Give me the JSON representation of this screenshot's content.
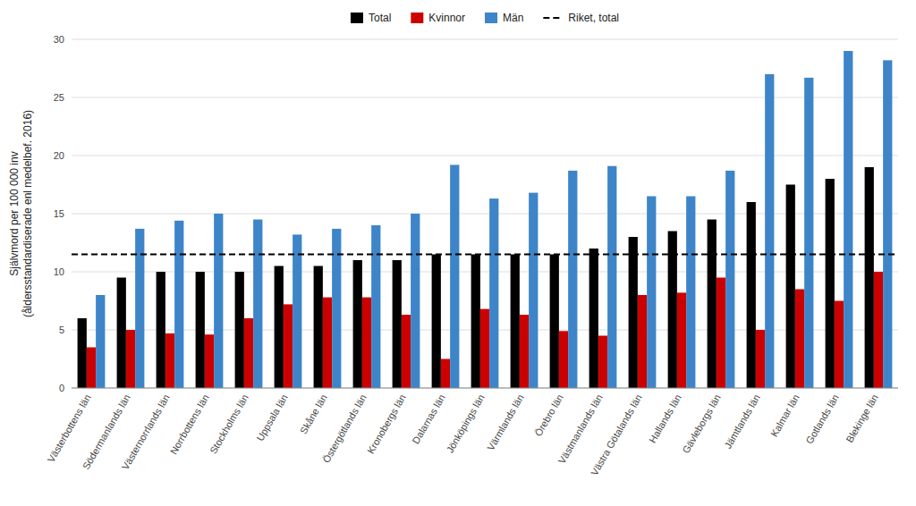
{
  "chart_data": {
    "type": "bar",
    "categories": [
      "Västerbottens län",
      "Södermanlands län",
      "Västernorrlands län",
      "Norrbottens län",
      "Stockholms län",
      "Uppsala län",
      "Skåne län",
      "Östergötlands län",
      "Kronobergs län",
      "Dalarnas län",
      "Jönköpings län",
      "Värmlands län",
      "Örebro län",
      "Västmanlands län",
      "Västra Götalands län",
      "Hallands län",
      "Gävleborgs län",
      "Jämtlands län",
      "Kalmar län",
      "Gotlands län",
      "Blekinge län"
    ],
    "series": [
      {
        "name": "Total",
        "color": "#000000",
        "values": [
          6.0,
          9.5,
          10.0,
          10.0,
          10.0,
          10.5,
          10.5,
          11.0,
          11.0,
          11.5,
          11.5,
          11.5,
          11.5,
          12.0,
          13.0,
          13.5,
          14.5,
          16.0,
          17.5,
          18.0,
          19.0
        ]
      },
      {
        "name": "Kvinnor",
        "color": "#cc0000",
        "values": [
          3.5,
          5.0,
          4.7,
          4.6,
          6.0,
          7.2,
          7.8,
          7.8,
          6.3,
          2.5,
          6.8,
          6.3,
          4.9,
          4.5,
          8.0,
          8.2,
          9.5,
          5.0,
          8.5,
          7.5,
          10.0
        ]
      },
      {
        "name": "Män",
        "color": "#3d85c8",
        "values": [
          8.0,
          13.7,
          14.4,
          15.0,
          14.5,
          13.2,
          13.7,
          14.0,
          15.0,
          19.2,
          16.3,
          16.8,
          18.7,
          19.1,
          16.5,
          16.5,
          18.7,
          27.0,
          26.7,
          29.0,
          28.2
        ]
      }
    ],
    "reference_lines": [
      {
        "name": "Riket, total",
        "value": 11.5,
        "color": "#000000",
        "line_style": "dashed"
      }
    ],
    "ylabel": "Självmord per 100 000 inv\n(åldersstandardiserade enl medelbef. 2016)",
    "ylim": [
      0,
      30
    ],
    "yticks": [
      0,
      5,
      10,
      15,
      20,
      25,
      30
    ],
    "grid": true,
    "legend": "top"
  }
}
